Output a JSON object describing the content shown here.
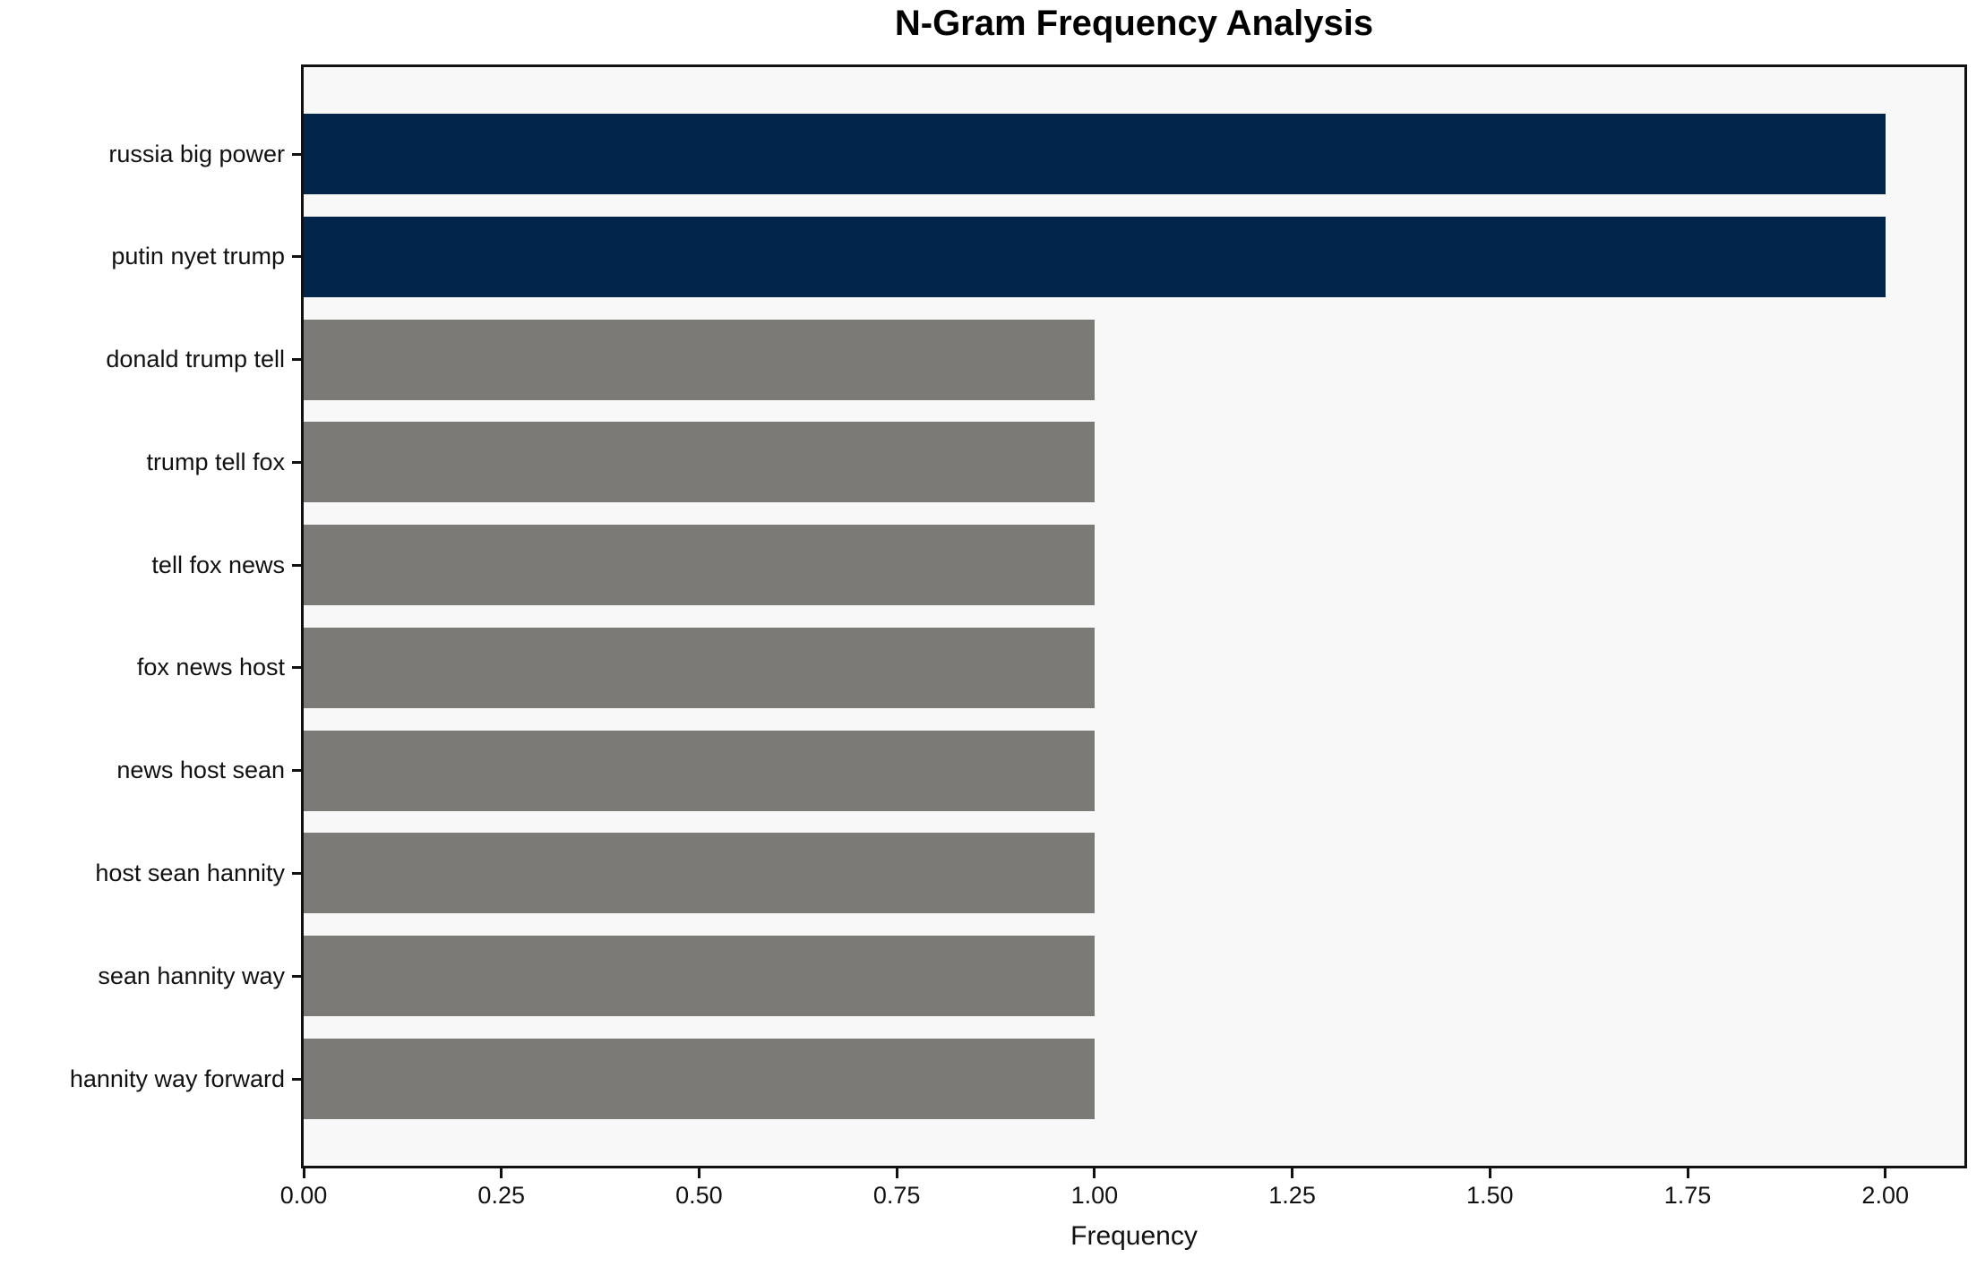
{
  "chart_data": {
    "type": "bar",
    "orientation": "horizontal",
    "title": "N-Gram Frequency Analysis",
    "xlabel": "Frequency",
    "ylabel": "",
    "categories": [
      "russia big power",
      "putin nyet trump",
      "donald trump tell",
      "trump tell fox",
      "tell fox news",
      "fox news host",
      "news host sean",
      "host sean hannity",
      "sean hannity way",
      "hannity way forward"
    ],
    "values": [
      2,
      2,
      1,
      1,
      1,
      1,
      1,
      1,
      1,
      1
    ],
    "bar_colors": [
      "#02254c",
      "#02254c",
      "#7b7a76",
      "#7b7a76",
      "#7b7a76",
      "#7b7a76",
      "#7b7a76",
      "#7b7a76",
      "#7b7a76",
      "#7b7a76"
    ],
    "x_ticks": [
      "0.00",
      "0.25",
      "0.50",
      "0.75",
      "1.00",
      "1.25",
      "1.50",
      "1.75",
      "2.00"
    ],
    "x_tick_values": [
      0,
      0.25,
      0.5,
      0.75,
      1.0,
      1.25,
      1.5,
      1.75,
      2.0
    ],
    "xlim": [
      0,
      2.1
    ],
    "grid": false,
    "legend": "none",
    "colors": {
      "highlight": "#02254c",
      "default": "#7b7a76",
      "plot_background": "#f8f8f8",
      "figure_background": "#ffffff",
      "spine": "#111111",
      "text": "#111111"
    }
  }
}
